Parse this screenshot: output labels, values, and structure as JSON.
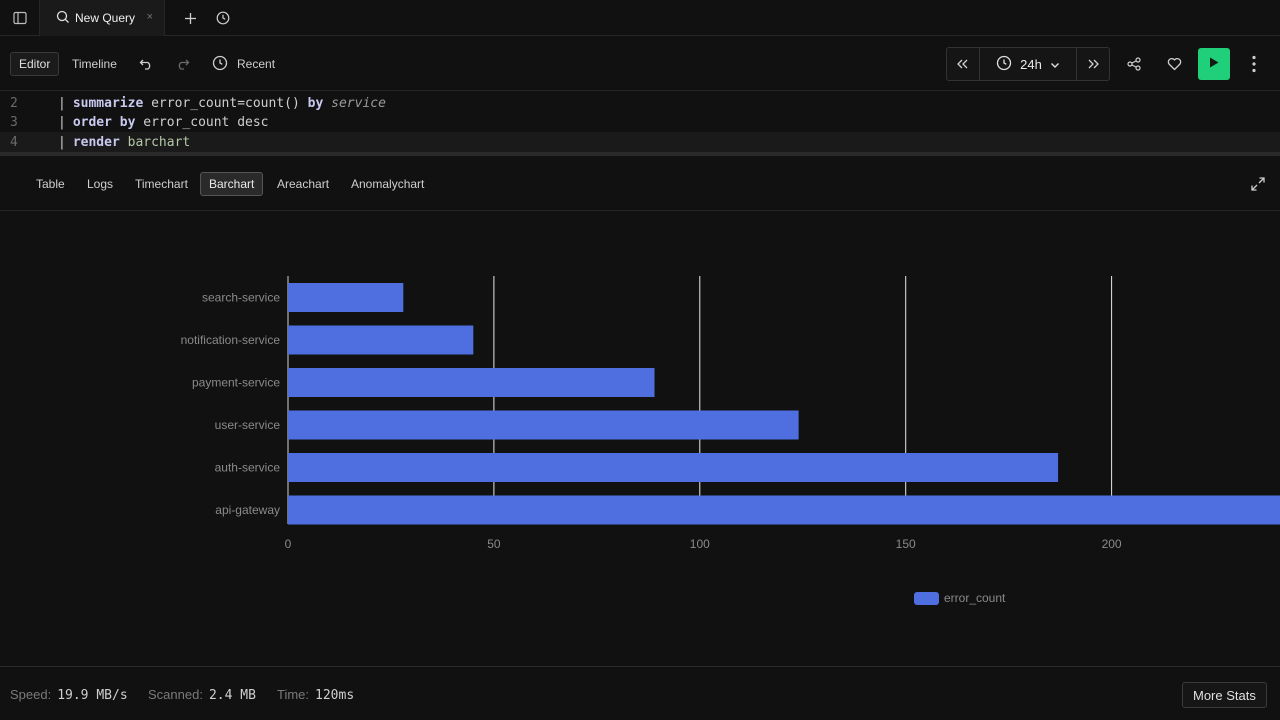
{
  "tabs": {
    "sidebar_icon": "sidebar-panel-icon",
    "active_tab": {
      "label": "New Query",
      "icon": "search-icon",
      "close": "×"
    },
    "new_tab_icon": "plus-icon",
    "history_icon": "history-icon"
  },
  "toolbar": {
    "editor_label": "Editor",
    "timeline_label": "Timeline",
    "recent_label": "Recent",
    "time_range": "24h",
    "run_color": "#1fcf7a"
  },
  "editor": {
    "lines": [
      {
        "num": "2",
        "text": "| summarize error_count=count() by service"
      },
      {
        "num": "3",
        "text": "| order by error_count desc"
      },
      {
        "num": "4",
        "text": "| render barchart"
      }
    ],
    "tokens": {
      "l2": {
        "kw1": "summarize",
        "id1": "error_count",
        "eq": "=",
        "fn": "count()",
        "kw2": "by",
        "it": "service"
      },
      "l3": {
        "kw1": "order",
        "kw2": "by",
        "id1": "error_count",
        "id2": "desc"
      },
      "l4": {
        "kw1": "render",
        "id1": "barchart"
      },
      "pipe": "|"
    }
  },
  "view_tabs": {
    "items": [
      "Table",
      "Logs",
      "Timechart",
      "Barchart",
      "Areachart",
      "Anomalychart"
    ],
    "selected": "Barchart"
  },
  "chart_data": {
    "type": "bar",
    "orientation": "horizontal",
    "categories": [
      "search-service",
      "notification-service",
      "payment-service",
      "user-service",
      "auth-service",
      "api-gateway"
    ],
    "series": [
      {
        "name": "error_count",
        "values": [
          28,
          45,
          89,
          124,
          187,
          245
        ],
        "color": "#4f6fe0"
      }
    ],
    "xticks": [
      "0",
      "50",
      "100",
      "150",
      "200"
    ],
    "xlim": [
      0,
      240
    ],
    "grid": true,
    "legend_position": "bottom"
  },
  "status": {
    "speed_label": "Speed:",
    "speed_value": "19.9 MB/s",
    "scanned_label": "Scanned:",
    "scanned_value": "2.4 MB",
    "time_label": "Time:",
    "time_value": "120ms",
    "more_stats": "More Stats"
  }
}
